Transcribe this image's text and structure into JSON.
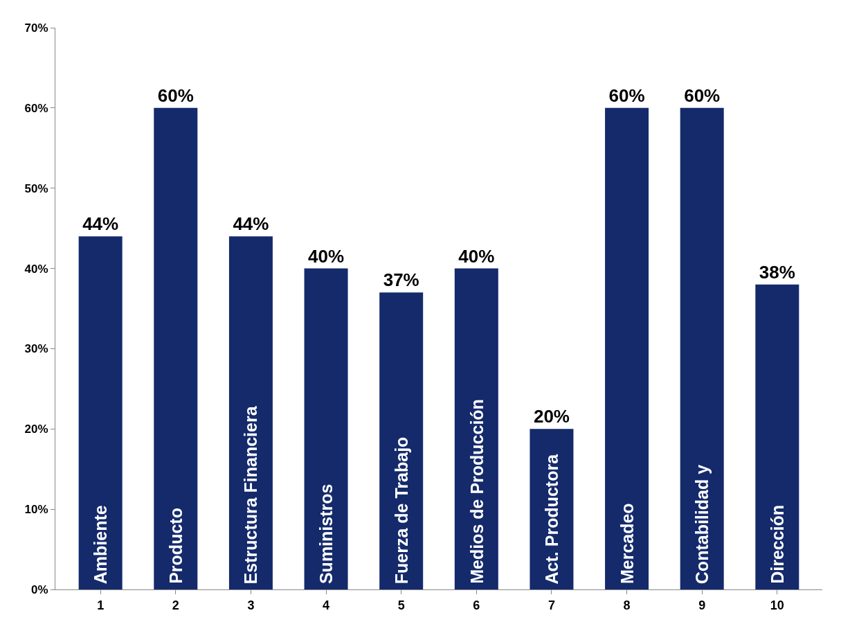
{
  "chart_data": {
    "type": "bar",
    "categories": [
      "1",
      "2",
      "3",
      "4",
      "5",
      "6",
      "7",
      "8",
      "9",
      "10"
    ],
    "values": [
      44,
      60,
      44,
      40,
      37,
      40,
      20,
      60,
      60,
      38
    ],
    "value_labels": [
      "44%",
      "60%",
      "44%",
      "40%",
      "37%",
      "40%",
      "20%",
      "60%",
      "60%",
      "38%"
    ],
    "color": "#142a6b",
    "ylim": [
      0,
      70
    ],
    "yticks": [
      {
        "value": 0,
        "label": "0%"
      },
      {
        "value": 10,
        "label": "10%"
      },
      {
        "value": 20,
        "label": "20%"
      },
      {
        "value": 30,
        "label": "30%"
      },
      {
        "value": 40,
        "label": "40%"
      },
      {
        "value": 50,
        "label": "50%"
      },
      {
        "value": 60,
        "label": "60%"
      },
      {
        "value": 70,
        "label": "70%"
      }
    ],
    "annotations": [
      {
        "text": "Ambiente",
        "x": "1",
        "y": 0
      },
      {
        "text": "Producto",
        "x": "2",
        "y": 0
      },
      {
        "text": "Estructura Financiera",
        "x": "3",
        "y": 0
      },
      {
        "text": "Suministros",
        "x": "4",
        "y": 0
      },
      {
        "text": "Fuerza de Trabajo",
        "x": "5",
        "y": 0
      },
      {
        "text": "Medios de Producción",
        "x": "6",
        "y": 0
      },
      {
        "text": "Act. Productora",
        "x": "7",
        "y": 0
      },
      {
        "text": "Mercadeo",
        "x": "8",
        "y": 0
      },
      {
        "text": "Contabilidad y",
        "x": "9",
        "y": 0
      },
      {
        "text": "Dirección",
        "x": "10",
        "y": 0
      }
    ],
    "legend": false
  }
}
